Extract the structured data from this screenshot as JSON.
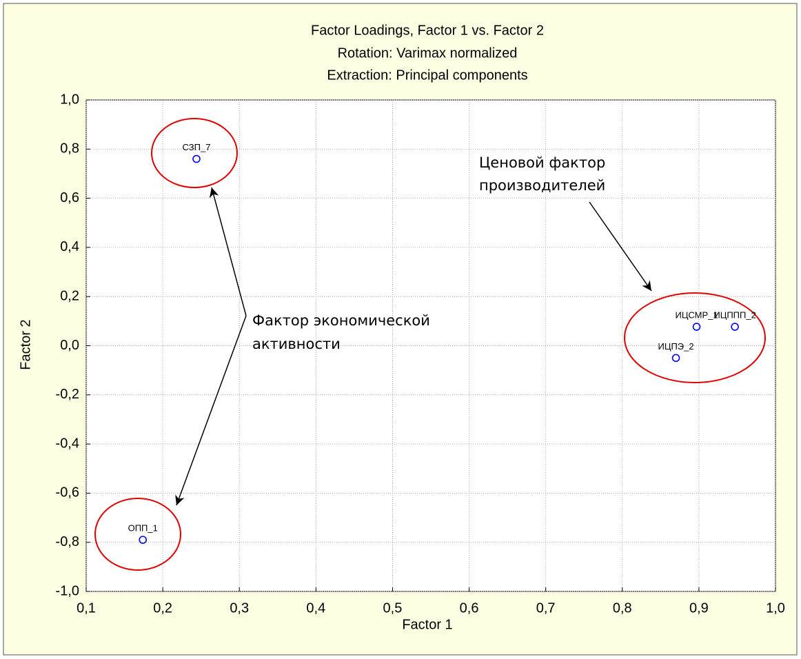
{
  "chart_data": {
    "type": "scatter",
    "title": "Factor Loadings, Factor 1 vs. Factor 2",
    "subtitles": [
      "Rotation: Varimax normalized",
      "Extraction: Principal components"
    ],
    "x_label": "Factor 1",
    "y_label": "Factor 2",
    "series": [
      {
        "color": "#0000ff",
        "labels": [
          "СЗП_7",
          "ОПП_1",
          "ИЦСМР_1",
          "ИЦППП_2",
          "ИЦПЭ_2"
        ],
        "x": [
          0.244,
          0.174,
          0.897,
          0.947,
          0.87
        ],
        "values": [
          0.76,
          -0.79,
          0.077,
          0.077,
          -0.05
        ]
      }
    ],
    "annotations": [
      {
        "lines": [
          "Фактор экономической",
          "активности"
        ]
      },
      {
        "lines": [
          "Ценовой фактор",
          "производителей"
        ]
      }
    ],
    "xlim": [
      0.1,
      1.0
    ],
    "xticks": [
      {
        "value": 0.1,
        "label": "0,1"
      },
      {
        "value": 0.2,
        "label": "0,2"
      },
      {
        "value": 0.3,
        "label": "0,3"
      },
      {
        "value": 0.4,
        "label": "0,4"
      },
      {
        "value": 0.5,
        "label": "0,5"
      },
      {
        "value": 0.6,
        "label": "0,6"
      },
      {
        "value": 0.7,
        "label": "0,7"
      },
      {
        "value": 0.8,
        "label": "0,8"
      },
      {
        "value": 0.9,
        "label": "0,9"
      },
      {
        "value": 1.0,
        "label": "1,0"
      }
    ],
    "ylim": [
      -1.0,
      1.0
    ],
    "yticks": [
      {
        "value": -1.0,
        "label": "-1,0"
      },
      {
        "value": -0.8,
        "label": "-0,8"
      },
      {
        "value": -0.6,
        "label": "-0,6"
      },
      {
        "value": -0.4,
        "label": "-0,4"
      },
      {
        "value": -0.2,
        "label": "-0,2"
      },
      {
        "value": 0,
        "label": "0,0"
      },
      {
        "value": 0.2,
        "label": "0,2"
      },
      {
        "value": 0.4,
        "label": "0,4"
      },
      {
        "value": 0.6,
        "label": "0,6"
      },
      {
        "value": 0.8,
        "label": "0,8"
      },
      {
        "value": 1.0,
        "label": "1,0"
      }
    ],
    "grid": true
  }
}
